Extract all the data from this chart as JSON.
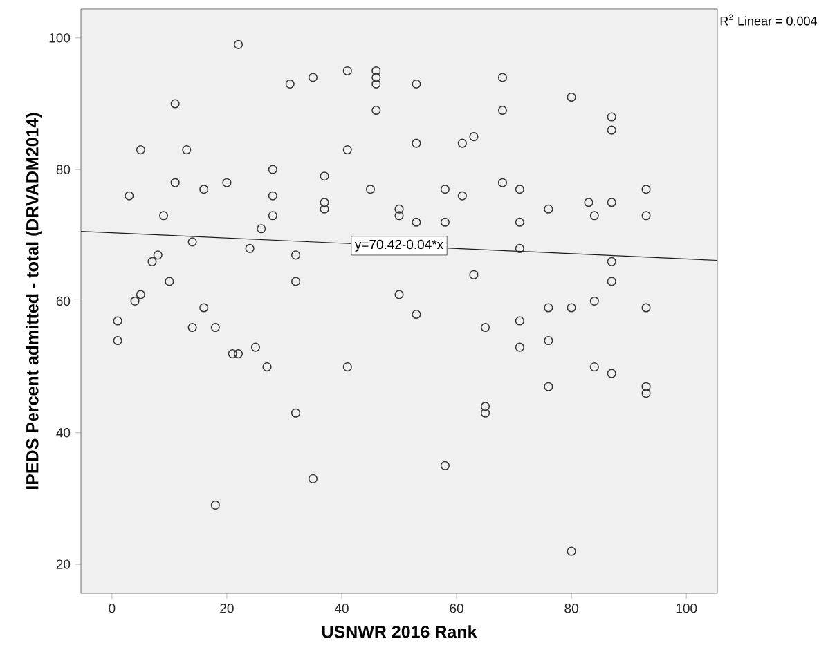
{
  "chart_data": {
    "type": "scatter",
    "xlabel": "USNWR 2016 Rank",
    "ylabel": "IPEDS Percent admitted - total (DRVADM2014)",
    "xlim": [
      -5.4,
      105.4
    ],
    "ylim": [
      15.6,
      104.4
    ],
    "xticks": [
      0,
      20,
      40,
      60,
      80,
      100
    ],
    "yticks": [
      20,
      40,
      60,
      80,
      100
    ],
    "grid": false,
    "marker": "circle",
    "series": [
      {
        "color": "#333333",
        "x": [
          1,
          1,
          3,
          4,
          5,
          5,
          7,
          8,
          9,
          10,
          11,
          11,
          13,
          14,
          14,
          16,
          16,
          18,
          18,
          20,
          21,
          22,
          22,
          24,
          25,
          26,
          27,
          28,
          28,
          28,
          31,
          32,
          32,
          32,
          35,
          35,
          37,
          37,
          37,
          41,
          41,
          41,
          45,
          46,
          46,
          46,
          46,
          50,
          50,
          50,
          53,
          53,
          53,
          53,
          58,
          58,
          58,
          61,
          61,
          63,
          63,
          65,
          65,
          65,
          68,
          68,
          68,
          71,
          71,
          71,
          71,
          71,
          76,
          76,
          76,
          76,
          80,
          80,
          80,
          83,
          84,
          84,
          84,
          87,
          87,
          87,
          87,
          87,
          87,
          93,
          93,
          93,
          93,
          93
        ],
        "values": [
          57,
          54,
          76,
          60,
          83,
          61,
          66,
          67,
          73,
          63,
          90,
          78,
          83,
          69,
          56,
          77,
          59,
          56,
          29,
          78,
          52,
          52,
          99,
          68,
          53,
          71,
          50,
          80,
          76,
          73,
          93,
          67,
          63,
          43,
          94,
          33,
          79,
          75,
          74,
          95,
          83,
          50,
          77,
          95,
          94,
          93,
          89,
          74,
          73,
          61,
          93,
          84,
          72,
          58,
          77,
          72,
          35,
          84,
          76,
          85,
          64,
          56,
          44,
          43,
          94,
          89,
          78,
          77,
          72,
          68,
          57,
          53,
          74,
          59,
          54,
          47,
          91,
          59,
          22,
          75,
          73,
          60,
          50,
          88,
          86,
          75,
          66,
          63,
          49,
          77,
          73,
          59,
          47,
          46
        ]
      },
      {
        "type": "line",
        "color": "#1a1a1a",
        "marker": "none",
        "x": [
          -5.4,
          105.4
        ],
        "values": [
          70.6,
          66.2
        ]
      }
    ],
    "annotations": [
      {
        "text": "y=70.42-0.04*x",
        "x": 50,
        "y": 68.42
      },
      "R$^{2}$ Linear = 0.004"
    ]
  }
}
